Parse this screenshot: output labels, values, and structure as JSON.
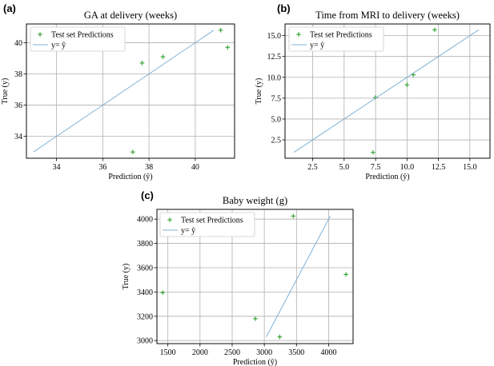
{
  "chart_data": [
    {
      "panel": "(a)",
      "type": "scatter",
      "title": "GA at delivery (weeks)",
      "xlabel": "Prediction (ŷ)",
      "ylabel": "True (y)",
      "xlim": [
        32.7,
        41.7
      ],
      "ylim": [
        32.6,
        41.2
      ],
      "xticks": [
        34,
        36,
        38,
        40
      ],
      "yticks": [
        34,
        36,
        38,
        40
      ],
      "series": [
        {
          "name": "Test set Predictions",
          "kind": "points",
          "color": "#2ca02c",
          "points": [
            [
              37.3,
              33.0
            ],
            [
              37.7,
              38.7
            ],
            [
              38.6,
              39.1
            ],
            [
              41.1,
              40.8
            ],
            [
              41.4,
              39.7
            ]
          ]
        },
        {
          "name": "y= ŷ",
          "kind": "line",
          "color": "#7fb3d9",
          "points": [
            [
              33.0,
              33.0
            ],
            [
              40.8,
              40.8
            ]
          ]
        }
      ]
    },
    {
      "panel": "(b)",
      "type": "scatter",
      "title": "Time from MRI to delivery (weeks)",
      "xlabel": "Prediction (ŷ)",
      "ylabel": "True (y)",
      "xlim": [
        0.3,
        16.6
      ],
      "ylim": [
        0.3,
        16.4
      ],
      "xticks": [
        2.5,
        5.0,
        7.5,
        10.0,
        12.5,
        15.0
      ],
      "yticks": [
        2.5,
        5.0,
        7.5,
        10.0,
        12.5,
        15.0
      ],
      "series": [
        {
          "name": "Test set Predictions",
          "kind": "points",
          "color": "#2ca02c",
          "points": [
            [
              7.3,
              1.0
            ],
            [
              7.5,
              7.6
            ],
            [
              10.0,
              9.1
            ],
            [
              10.5,
              10.3
            ],
            [
              12.2,
              15.7
            ]
          ]
        },
        {
          "name": "y= ŷ",
          "kind": "line",
          "color": "#7fb3d9",
          "points": [
            [
              1.0,
              1.0
            ],
            [
              15.7,
              15.7
            ]
          ]
        }
      ]
    },
    {
      "panel": "(c)",
      "type": "scatter",
      "title": "Baby weight (g)",
      "xlabel": "Prediction (ŷ)",
      "ylabel": "True (y)",
      "xlim": [
        1330,
        4380
      ],
      "ylim": [
        2975,
        4080
      ],
      "xticks": [
        1500,
        2000,
        2500,
        3000,
        3500,
        4000
      ],
      "yticks": [
        3000,
        3200,
        3400,
        3600,
        3800,
        4000
      ],
      "series": [
        {
          "name": "Test set Predictions",
          "kind": "points",
          "color": "#2ca02c",
          "points": [
            [
              1420,
              3395
            ],
            [
              2860,
              3180
            ],
            [
              3240,
              3030
            ],
            [
              3450,
              4025
            ],
            [
              4270,
              3545
            ]
          ]
        },
        {
          "name": "y= ŷ",
          "kind": "line",
          "color": "#7fb3d9",
          "points": [
            [
              3030,
              3030
            ],
            [
              4025,
              4025
            ]
          ]
        }
      ]
    }
  ]
}
